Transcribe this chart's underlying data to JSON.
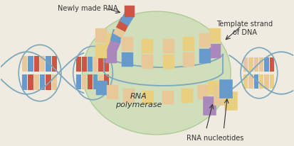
{
  "bg_color": "#f0ebe0",
  "bubble_color": "#cdddb8",
  "bubble_edge_color": "#a8c890",
  "strand_blue": "#7ba7bc",
  "strand_blue2": "#5b8db0",
  "bar_colors": {
    "red": "#cc5544",
    "blue": "#6699cc",
    "yellow": "#e8d080",
    "cream": "#e8c898",
    "orange": "#dd8844",
    "purple": "#aa88bb",
    "pink": "#cc88aa",
    "teal": "#88bbaa",
    "gray_blue": "#8899bb"
  },
  "text_color": "#333333",
  "font_size": 7,
  "label_rna_polymerase": "RNA\npolymerase",
  "label_rna_nucleotides": "RNA nucleotides",
  "label_newly_made_rna": "Newly made RNA",
  "label_template_strand": "Template strand\nof DNA"
}
